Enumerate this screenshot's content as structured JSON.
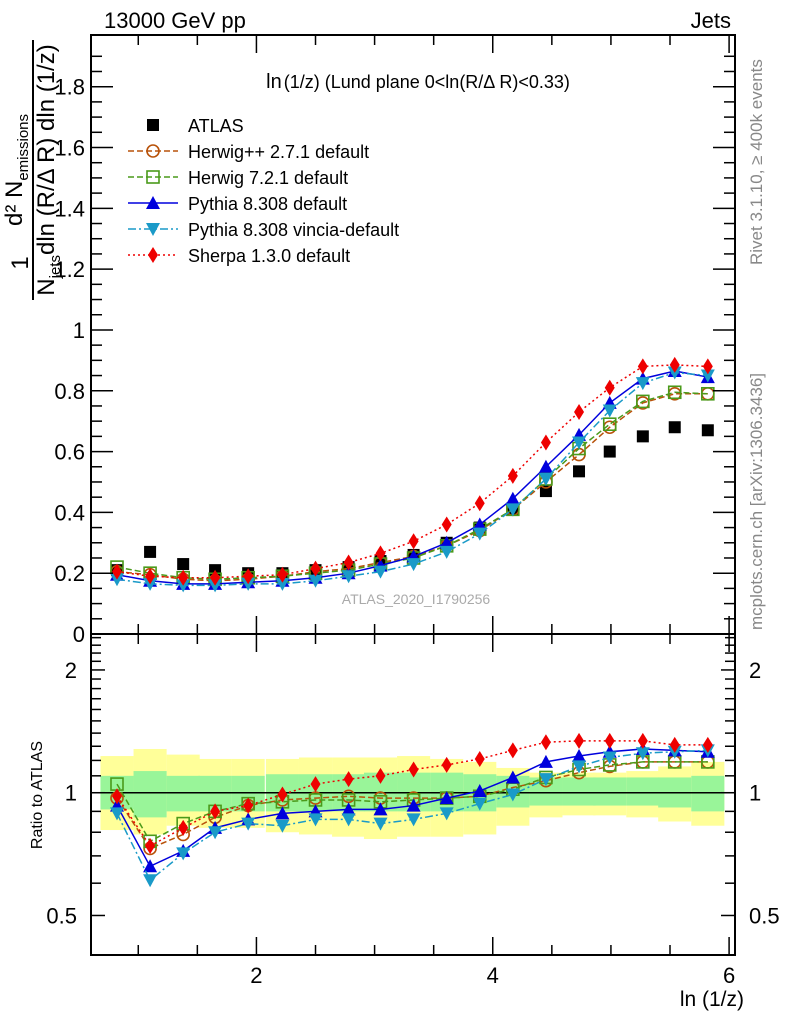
{
  "header": {
    "left_title": "13000 GeV pp",
    "right_title": "Jets"
  },
  "side_labels": {
    "rivet": "Rivet 3.1.10, ≥ 400k events",
    "mcplots": "mcplots.cern.ch [arXiv:1306.3436]"
  },
  "chart_data": [
    {
      "type": "scatter",
      "panel": "main",
      "title": "ln(1/z) (Lund plane 0<ln(R/Δ R)<0.33)",
      "title_prefix": "ln",
      "title_rest": "(1/z) (Lund plane 0<ln(R/Δ R)<0.33)",
      "ylabel_parts": {
        "numerator": "d² N",
        "numerator_sub": "emissions",
        "denominator": "dln (R/Δ R) dln (1/z)",
        "one": "1",
        "n": "N",
        "n_sub": "jets"
      },
      "xlabel": "",
      "xlim": [
        0.6,
        6.05
      ],
      "ylim": [
        0,
        1.97
      ],
      "yticks": [
        0,
        0.2,
        0.4,
        0.6,
        0.8,
        1,
        1.2,
        1.4,
        1.6,
        1.8
      ],
      "ytick_labels": [
        "0",
        "0.2",
        "0.4",
        "0.6",
        "0.8",
        "1",
        "1.2",
        "1.4",
        "1.6",
        "1.8"
      ],
      "watermark": "ATLAS_2020_I1790256",
      "legend_position": "top-left",
      "x": [
        0.82,
        1.1,
        1.38,
        1.65,
        1.93,
        2.22,
        2.5,
        2.78,
        3.05,
        3.33,
        3.61,
        3.89,
        4.17,
        4.45,
        4.73,
        4.99,
        5.27,
        5.54,
        5.82
      ],
      "series": [
        {
          "name": "ATLAS",
          "color": "#000000",
          "marker": "square-filled",
          "line": "none",
          "values": [
            0.21,
            0.27,
            0.23,
            0.21,
            0.2,
            0.2,
            0.21,
            0.22,
            0.24,
            0.26,
            0.3,
            0.35,
            0.41,
            0.47,
            0.535,
            0.6,
            0.65,
            0.68,
            0.67
          ]
        },
        {
          "name": "Herwig++ 2.7.1 default",
          "color": "#b8520a",
          "marker": "circle-open",
          "line": "dashed",
          "values": [
            0.205,
            0.195,
            0.18,
            0.175,
            0.18,
            0.19,
            0.205,
            0.215,
            0.235,
            0.255,
            0.29,
            0.34,
            0.41,
            0.5,
            0.59,
            0.68,
            0.76,
            0.79,
            0.79
          ]
        },
        {
          "name": "Herwig 7.2.1 default",
          "color": "#4a9a1a",
          "marker": "square-open",
          "line": "dashed",
          "values": [
            0.22,
            0.2,
            0.185,
            0.18,
            0.185,
            0.19,
            0.2,
            0.21,
            0.23,
            0.25,
            0.29,
            0.345,
            0.41,
            0.51,
            0.61,
            0.69,
            0.765,
            0.795,
            0.79
          ]
        },
        {
          "name": "Pythia 8.308 default",
          "color": "#0000dd",
          "marker": "triangle-up",
          "line": "solid",
          "values": [
            0.195,
            0.175,
            0.165,
            0.165,
            0.17,
            0.175,
            0.185,
            0.2,
            0.225,
            0.255,
            0.3,
            0.36,
            0.445,
            0.55,
            0.655,
            0.76,
            0.84,
            0.865,
            0.845
          ]
        },
        {
          "name": "Pythia 8.308 vincia-default",
          "color": "#1a9ac8",
          "marker": "triangle-down",
          "line": "dashdot",
          "values": [
            0.18,
            0.165,
            0.16,
            0.16,
            0.165,
            0.165,
            0.175,
            0.19,
            0.205,
            0.23,
            0.27,
            0.33,
            0.41,
            0.51,
            0.63,
            0.735,
            0.825,
            0.86,
            0.85
          ]
        },
        {
          "name": "Sherpa 1.3.0 default",
          "color": "#ee0000",
          "marker": "diamond",
          "line": "dotted",
          "values": [
            0.205,
            0.19,
            0.185,
            0.185,
            0.19,
            0.195,
            0.215,
            0.235,
            0.265,
            0.305,
            0.36,
            0.43,
            0.52,
            0.63,
            0.73,
            0.81,
            0.88,
            0.885,
            0.88
          ]
        }
      ]
    },
    {
      "type": "scatter",
      "panel": "ratio",
      "ylabel": "Ratio to ATLAS",
      "xlabel": "ln (1/z)",
      "yscale": "log",
      "ylim": [
        0.4,
        2.45
      ],
      "yticks": [
        0.5,
        1,
        2
      ],
      "ytick_labels": [
        "0.5",
        "1",
        "2"
      ],
      "xlim": [
        0.6,
        6.05
      ],
      "xticks": [
        2,
        4,
        6
      ],
      "xtick_labels": [
        "2",
        "4",
        "6"
      ],
      "x": [
        0.82,
        1.1,
        1.38,
        1.65,
        1.93,
        2.22,
        2.5,
        2.78,
        3.05,
        3.33,
        3.61,
        3.89,
        4.17,
        4.45,
        4.73,
        4.99,
        5.27,
        5.54,
        5.82
      ],
      "bands": {
        "stat_color": "#99f599",
        "total_color": "#ffff99",
        "stat_low": [
          0.91,
          0.87,
          0.9,
          0.9,
          0.9,
          0.9,
          0.9,
          0.9,
          0.9,
          0.9,
          0.9,
          0.9,
          0.92,
          0.93,
          0.93,
          0.93,
          0.93,
          0.92,
          0.9
        ],
        "stat_high": [
          1.1,
          1.13,
          1.1,
          1.1,
          1.1,
          1.11,
          1.11,
          1.11,
          1.12,
          1.12,
          1.12,
          1.11,
          1.1,
          1.09,
          1.09,
          1.09,
          1.09,
          1.09,
          1.1
        ],
        "total_low": [
          0.81,
          0.79,
          0.83,
          0.82,
          0.82,
          0.8,
          0.79,
          0.78,
          0.77,
          0.78,
          0.78,
          0.79,
          0.83,
          0.87,
          0.88,
          0.88,
          0.87,
          0.85,
          0.83
        ],
        "total_high": [
          1.23,
          1.28,
          1.24,
          1.21,
          1.21,
          1.21,
          1.22,
          1.22,
          1.22,
          1.23,
          1.21,
          1.19,
          1.15,
          1.12,
          1.12,
          1.12,
          1.13,
          1.16,
          1.19
        ]
      },
      "series": [
        {
          "name": "Herwig++ 2.7.1 default",
          "color": "#b8520a",
          "marker": "circle-open",
          "line": "dashed",
          "values": [
            0.97,
            0.73,
            0.79,
            0.87,
            0.93,
            0.96,
            0.97,
            0.98,
            0.97,
            0.97,
            0.97,
            0.98,
            1.03,
            1.07,
            1.12,
            1.16,
            1.19,
            1.19,
            1.19
          ]
        },
        {
          "name": "Herwig 7.2.1 default",
          "color": "#4a9a1a",
          "marker": "square-open",
          "line": "dashed",
          "values": [
            1.05,
            0.76,
            0.84,
            0.9,
            0.94,
            0.95,
            0.96,
            0.96,
            0.95,
            0.96,
            0.97,
            0.98,
            1.02,
            1.09,
            1.14,
            1.17,
            1.19,
            1.19,
            1.19
          ]
        },
        {
          "name": "Pythia 8.308 default",
          "color": "#0000dd",
          "marker": "triangle-up",
          "line": "solid",
          "values": [
            0.93,
            0.66,
            0.72,
            0.82,
            0.86,
            0.89,
            0.9,
            0.91,
            0.91,
            0.93,
            0.97,
            1.01,
            1.09,
            1.19,
            1.23,
            1.26,
            1.28,
            1.27,
            1.26
          ]
        },
        {
          "name": "Pythia 8.308 vincia-default",
          "color": "#1a9ac8",
          "marker": "triangle-down",
          "line": "dashdot",
          "values": [
            0.89,
            0.61,
            0.71,
            0.8,
            0.84,
            0.83,
            0.86,
            0.86,
            0.84,
            0.86,
            0.89,
            0.94,
            0.99,
            1.08,
            1.16,
            1.22,
            1.25,
            1.26,
            1.27
          ]
        },
        {
          "name": "Sherpa 1.3.0 default",
          "color": "#ee0000",
          "marker": "diamond",
          "line": "dotted",
          "values": [
            0.98,
            0.74,
            0.82,
            0.9,
            0.93,
            0.99,
            1.05,
            1.08,
            1.1,
            1.14,
            1.17,
            1.21,
            1.27,
            1.33,
            1.34,
            1.34,
            1.34,
            1.31,
            1.31
          ]
        }
      ]
    }
  ]
}
